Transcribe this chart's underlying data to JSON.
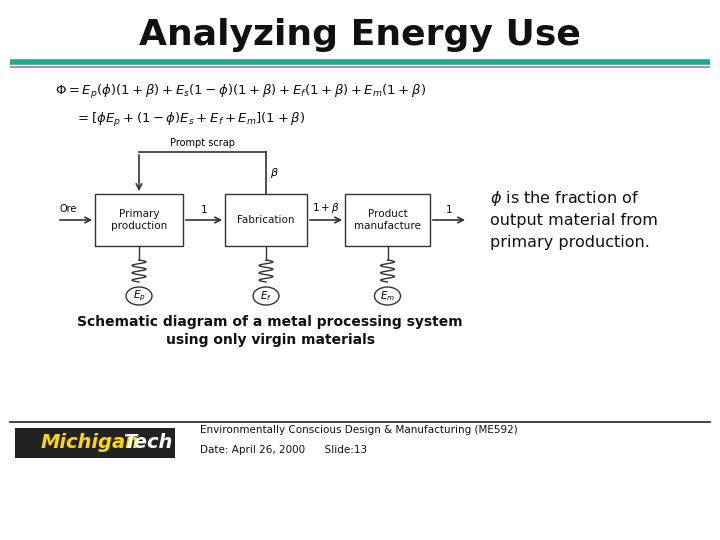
{
  "title": "Analyzing Energy Use",
  "title_fontsize": 26,
  "title_color": "#111111",
  "bg_color": "#ffffff",
  "header_line1_color": "#1aaa90",
  "header_line2_color": "#bb88bb",
  "footer_line_color": "#222222",
  "formula1": "$\\Phi = E_p(\\phi)(1+\\beta) + E_s(1-\\phi)(1+\\beta) + E_f(1+\\beta) + E_m(1+\\beta)$",
  "formula2": "$= [\\phi E_p + (1-\\phi)E_s + E_f + E_m](1+\\beta)$",
  "phi_desc_line1": "$\\phi$ is the fraction of",
  "phi_desc_line2": "output material from",
  "phi_desc_line3": "primary production.",
  "schematic_caption1": "Schematic diagram of a metal processing system",
  "schematic_caption2": "using only virgin materials",
  "footer_course": "Environmentally Conscious Design & Manufacturing (ME592)",
  "footer_date": "Date: April 26, 2000      Slide:13",
  "box_primary": "Primary\nproduction",
  "box_fabrication": "Fabrication",
  "box_product": "Product\nmanufacture",
  "label_ore": "Ore",
  "label_prompt": "Prompt scrap",
  "label_beta": "$\\beta$",
  "label_1a": "1",
  "label_1plus_beta": "$1+\\beta$",
  "label_1b": "1",
  "label_ep": "$E_p$",
  "label_ef": "$E_f$",
  "label_em": "$E_m$",
  "michigan_yellow": "#FFD700",
  "michigan_black": "#222222"
}
